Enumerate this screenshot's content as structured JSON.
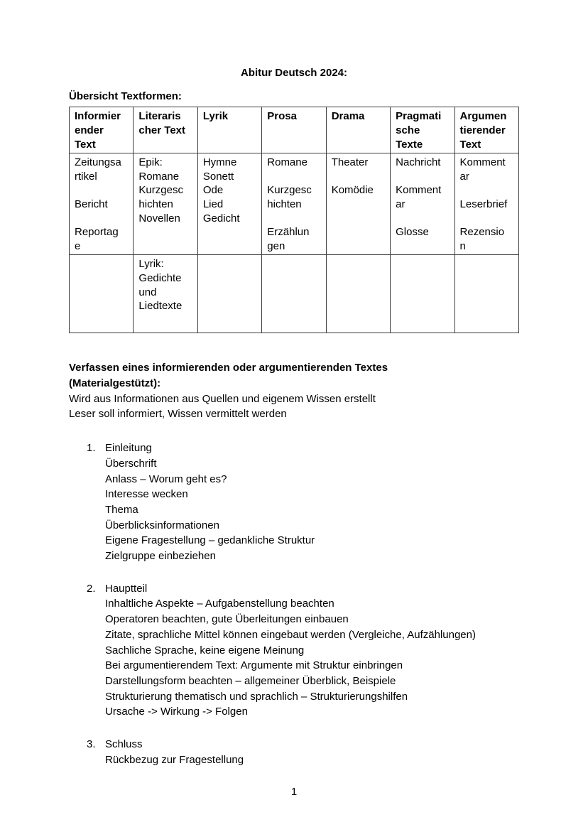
{
  "page": {
    "title": "Abitur Deutsch 2024:",
    "page_number": "1"
  },
  "colors": {
    "text": "#000000",
    "table_border": "#3d3d3d",
    "page_background": "#ffffff"
  },
  "table_section": {
    "heading": "Übersicht Textformen:",
    "table": {
      "headers": [
        [
          "Informier",
          "ender",
          "Text"
        ],
        [
          "Literaris",
          "cher Text"
        ],
        [
          "Lyrik"
        ],
        [
          "Prosa"
        ],
        [
          "Drama"
        ],
        [
          "Pragmati",
          "sche",
          "Texte"
        ],
        [
          "Argumen",
          "tierender",
          "Text"
        ]
      ],
      "rows": [
        [
          [
            "Zeitungsa",
            "rtikel",
            "",
            "Bericht",
            "",
            "Reportag",
            "e"
          ],
          [
            "Epik:",
            "Romane",
            "Kurzgesc",
            "hichten",
            "Novellen"
          ],
          [
            "Hymne",
            "Sonett",
            "Ode",
            "Lied",
            "Gedicht"
          ],
          [
            "Romane",
            "",
            "Kurzgesc",
            "hichten",
            "",
            "Erzählun",
            "gen"
          ],
          [
            "Theater",
            "",
            "Komödie"
          ],
          [
            "Nachricht",
            "",
            "Komment",
            "ar",
            "",
            "Glosse"
          ],
          [
            "Komment",
            "ar",
            "",
            "Leserbrief",
            "",
            "Rezensio",
            "n"
          ]
        ],
        [
          [
            ""
          ],
          [
            "Lyrik:",
            "Gedichte",
            "und",
            "Liedtexte"
          ],
          [
            ""
          ],
          [
            ""
          ],
          [
            ""
          ],
          [
            ""
          ],
          [
            ""
          ]
        ]
      ]
    }
  },
  "essay_section": {
    "heading_lines": [
      "Verfassen eines informierenden oder argumentierenden Textes",
      "(Materialgestützt):"
    ],
    "intro_lines": [
      "Wird aus Informationen aus Quellen und eigenem Wissen erstellt",
      "Leser soll informiert, Wissen vermittelt werden"
    ],
    "lists": [
      {
        "number": "1.",
        "lines": [
          "Einleitung",
          "Überschrift",
          "Anlass – Worum geht es?",
          "Interesse wecken",
          "Thema",
          "Überblicksinformationen",
          "Eigene Fragestellung – gedankliche Struktur",
          "Zielgruppe einbeziehen"
        ]
      },
      {
        "number": "2.",
        "lines": [
          "Hauptteil",
          "Inhaltliche Aspekte – Aufgabenstellung beachten",
          "Operatoren beachten, gute Überleitungen einbauen",
          "Zitate, sprachliche Mittel können eingebaut werden (Vergleiche, Aufzählungen)",
          "Sachliche Sprache, keine eigene Meinung",
          "Bei argumentierendem Text: Argumente mit Struktur einbringen",
          "Darstellungsform beachten – allgemeiner Überblick, Beispiele",
          "Strukturierung thematisch und sprachlich – Strukturierungshilfen",
          "Ursache -> Wirkung -> Folgen"
        ]
      },
      {
        "number": "3.",
        "lines": [
          "Schluss",
          "Rückbezug zur Fragestellung"
        ]
      }
    ]
  }
}
